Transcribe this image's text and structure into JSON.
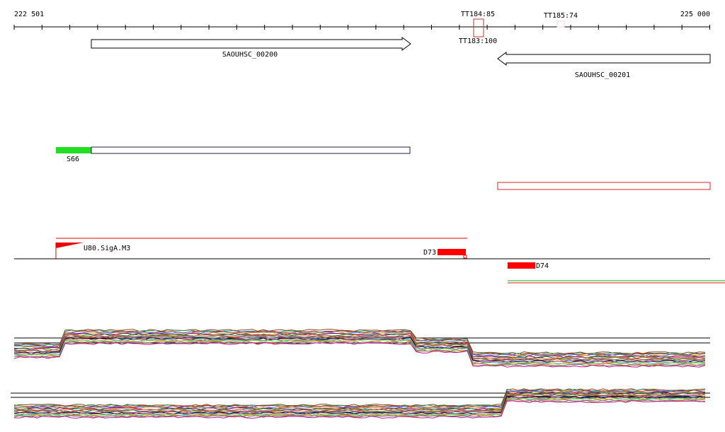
{
  "ruler": {
    "start": "222 501",
    "end": "225 000"
  },
  "terminators": [
    "TT184:85",
    "TT185:74",
    "TT183:100"
  ],
  "genes": [
    "SAOUHSC_00200",
    "SAOUHSC_00201"
  ],
  "segments": {
    "label": "S66"
  },
  "promoters": {
    "label": "U80.SigA.M3"
  },
  "peaks": [
    "D73",
    "D74"
  ]
}
